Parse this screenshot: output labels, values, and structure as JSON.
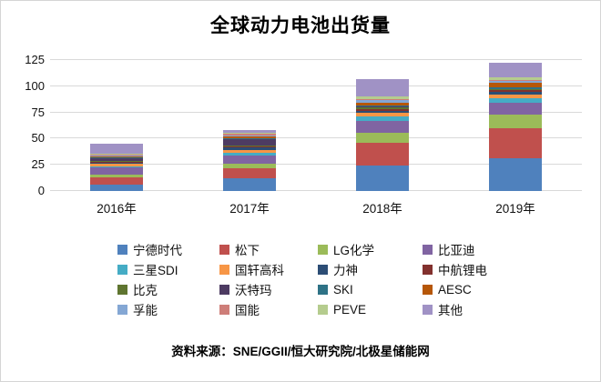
{
  "title": "全球动力电池出货量",
  "source": "资料来源：SNE/GGII/恒大研究院/北极星储能网",
  "colors": {
    "background": "#ffffff",
    "frame_border": "#d5d5d5",
    "gridline": "#d9d9d9",
    "text": "#111111"
  },
  "chart_data": {
    "type": "bar",
    "stacked": true,
    "title": "全球动力电池出货量",
    "xlabel": "",
    "ylabel": "",
    "ylim": [
      0,
      125
    ],
    "yticks": [
      0,
      25,
      50,
      75,
      100,
      125
    ],
    "grid": true,
    "legend_position": "bottom",
    "unit_hint": "GWh",
    "categories": [
      "2016年",
      "2017年",
      "2018年",
      "2019年"
    ],
    "series": [
      {
        "name": "宁德时代",
        "color": "#4F81BD",
        "values": [
          6.5,
          11.8,
          24.0,
          31.5
        ]
      },
      {
        "name": "松下",
        "color": "#C0504D",
        "values": [
          6.5,
          10.0,
          22.0,
          28.5
        ]
      },
      {
        "name": "LG化学",
        "color": "#9BBB59",
        "values": [
          2.3,
          4.5,
          9.5,
          13.0
        ]
      },
      {
        "name": "比亚迪",
        "color": "#8064A2",
        "values": [
          7.0,
          7.2,
          11.5,
          10.8
        ]
      },
      {
        "name": "三星SDI",
        "color": "#45ACC5",
        "values": [
          1.2,
          2.8,
          4.5,
          5.0
        ]
      },
      {
        "name": "国轩高科",
        "color": "#F79646",
        "values": [
          2.3,
          3.2,
          3.3,
          3.4
        ]
      },
      {
        "name": "力神",
        "color": "#2C4D75",
        "values": [
          1.2,
          2.0,
          2.0,
          2.3
        ]
      },
      {
        "name": "中航锂电",
        "color": "#82312E",
        "values": [
          0.8,
          0.7,
          1.0,
          1.7
        ]
      },
      {
        "name": "比克",
        "color": "#5F7530",
        "values": [
          1.2,
          1.6,
          1.8,
          0.9
        ]
      },
      {
        "name": "沃特玛",
        "color": "#4D3B62",
        "values": [
          2.5,
          5.5,
          1.0,
          0.3
        ]
      },
      {
        "name": "SKI",
        "color": "#2E7286",
        "values": [
          0.5,
          0.8,
          1.2,
          2.0
        ]
      },
      {
        "name": "AESC",
        "color": "#B65708",
        "values": [
          1.5,
          1.8,
          2.8,
          3.9
        ]
      },
      {
        "name": "孚能",
        "color": "#84A7D4",
        "values": [
          0.6,
          1.3,
          2.0,
          1.5
        ]
      },
      {
        "name": "国能",
        "color": "#CE7E79",
        "values": [
          0.8,
          1.5,
          1.2,
          1.2
        ]
      },
      {
        "name": "PEVE",
        "color": "#B5CC8E",
        "values": [
          0.8,
          1.4,
          2.2,
          2.2
        ]
      },
      {
        "name": "其他",
        "color": "#A092C5",
        "values": [
          9.3,
          1.9,
          17.0,
          14.5
        ]
      }
    ],
    "totals": [
      45.0,
      58.0,
      107.0,
      122.7
    ]
  },
  "layout_labels": {
    "y_axis_name": "y-axis",
    "x_axis_name": "x-axis"
  }
}
